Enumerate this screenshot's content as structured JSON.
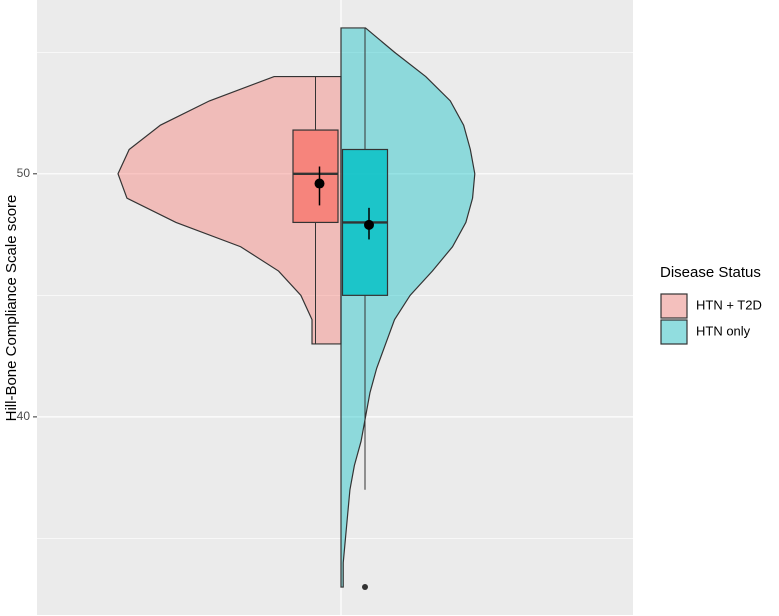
{
  "chart_data": {
    "type": "violin",
    "y_label": "Hill-Bone Compliance Scale score",
    "ylim": [
      31.85,
      57.15
    ],
    "yticks": [
      40,
      50
    ],
    "minor_yticks": [
      35,
      45,
      55
    ],
    "grid": true,
    "categories": [
      null
    ],
    "legend_title": "Disease Status",
    "legend": "right",
    "series": [
      {
        "name": "HTN + T2D",
        "color": "#F8766D",
        "violin": {
          "y": [
            54,
            53,
            52,
            51,
            50,
            49,
            48,
            47,
            46,
            45,
            44,
            43
          ],
          "width": [
            0.3,
            0.59,
            0.81,
            0.95,
            1.0,
            0.96,
            0.74,
            0.45,
            0.28,
            0.18,
            0.13,
            0.13
          ]
        },
        "box": {
          "whisker_low": 43,
          "q1": 48,
          "median": 50,
          "q3": 51.8,
          "whisker_high": 54,
          "outliers": []
        },
        "mean": 49.6,
        "ci": [
          48.7,
          50.3
        ]
      },
      {
        "name": "HTN only",
        "color": "#00BFC4",
        "violin": {
          "y": [
            56,
            55,
            54,
            53,
            52,
            51,
            50,
            49,
            48,
            47,
            46,
            45,
            44,
            43,
            42,
            41,
            40,
            39,
            38,
            37,
            36,
            35,
            34,
            33
          ],
          "width": [
            0.11,
            0.24,
            0.38,
            0.49,
            0.55,
            0.58,
            0.6,
            0.59,
            0.56,
            0.5,
            0.41,
            0.31,
            0.24,
            0.2,
            0.16,
            0.13,
            0.11,
            0.09,
            0.06,
            0.04,
            0.03,
            0.02,
            0.01,
            0.01
          ]
        },
        "box": {
          "whisker_low": 37,
          "q1": 45,
          "median": 48,
          "q3": 51,
          "whisker_high": 56,
          "outliers": [
            33
          ]
        },
        "mean": 47.9,
        "ci": [
          47.3,
          48.6
        ]
      }
    ]
  }
}
